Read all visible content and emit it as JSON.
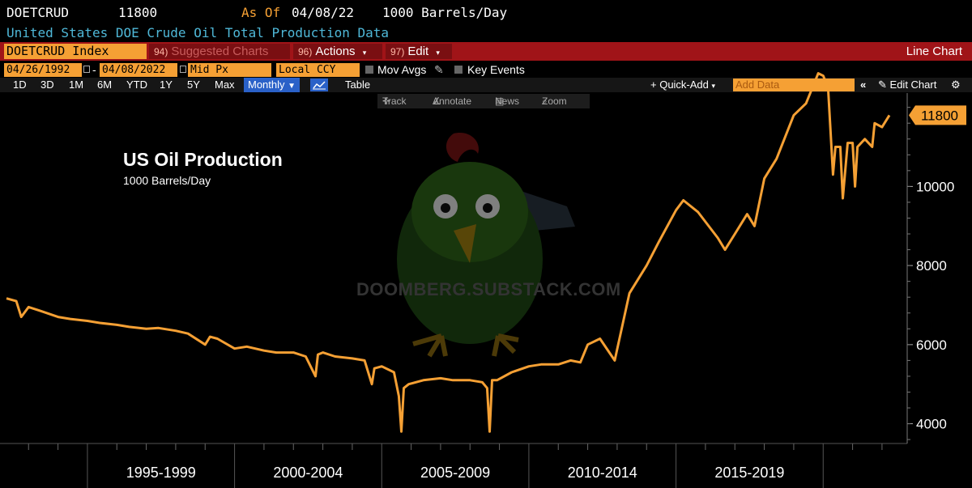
{
  "header": {
    "ticker": "DOETCRUD",
    "last_value": "11800",
    "as_of_label": "As Of",
    "as_of_date": "04/08/22",
    "units": "1000 Barrels/Day",
    "description": "United States DOE Crude Oil Total Production Data"
  },
  "toolbar": {
    "ticker_input": "DOETCRUD Index",
    "suggested_num": "94)",
    "suggested_label": "Suggested Charts",
    "actions_num": "96)",
    "actions_label": "Actions",
    "edit_num": "97)",
    "edit_label": "Edit",
    "chart_type": "Line Chart"
  },
  "settings": {
    "start_date": "04/26/1992",
    "end_date": "04/08/2022",
    "price_field": "Mid Px",
    "currency": "Local CCY",
    "mov_avgs": "Mov Avgs",
    "key_events": "Key Events"
  },
  "range_bar": {
    "ranges": [
      "1D",
      "3D",
      "1M",
      "6M",
      "YTD",
      "1Y",
      "5Y",
      "Max"
    ],
    "period": "Monthly",
    "table": "Table",
    "quick_add": "+ Quick-Add",
    "add_data_placeholder": "Add Data",
    "edit_chart": "Edit Chart"
  },
  "chart_tools": [
    "Track",
    "Annotate",
    "News",
    "Zoom"
  ],
  "watermark": "DOOMBERG.SUBSTACK.COM",
  "colors": {
    "line": "#f5a034",
    "background": "#000000",
    "toolbar": "#a01418"
  },
  "chart_data": {
    "type": "line",
    "title": "US Oil Production",
    "subtitle": "1000 Barrels/Day",
    "xlabel": "",
    "ylabel": "",
    "x_range": [
      "1992-04",
      "2022-04"
    ],
    "ylim": [
      3500,
      12300
    ],
    "y_ticks": [
      4000,
      6000,
      8000,
      10000
    ],
    "x_tick_labels": [
      "1995-1999",
      "2000-2004",
      "2005-2009",
      "2010-2014",
      "2015-2019"
    ],
    "last_value_label": "11800",
    "series": [
      {
        "x": [
          "1992-04",
          "1992-08",
          "1992-10",
          "1993-01",
          "1993-06",
          "1994-01",
          "1994-06",
          "1995-01",
          "1995-06",
          "1996-01",
          "1996-06",
          "1997-01",
          "1997-06",
          "1998-01",
          "1998-06",
          "1999-01",
          "1999-03",
          "1999-06",
          "2000-01",
          "2000-06",
          "2001-01",
          "2001-06",
          "2002-01",
          "2002-06",
          "2002-10",
          "2002-11",
          "2003-01",
          "2003-06",
          "2004-01",
          "2004-06",
          "2004-09",
          "2004-10",
          "2005-01",
          "2005-06",
          "2005-08",
          "2005-09",
          "2005-10",
          "2005-12",
          "2006-06",
          "2007-01",
          "2007-06",
          "2008-01",
          "2008-06",
          "2008-08",
          "2008-09",
          "2008-10",
          "2008-12",
          "2009-06",
          "2010-01",
          "2010-06",
          "2011-01",
          "2011-06",
          "2011-10",
          "2012-01",
          "2012-06",
          "2012-12",
          "2013-06",
          "2014-01",
          "2014-06",
          "2015-01",
          "2015-04",
          "2015-10",
          "2016-06",
          "2016-09",
          "2017-01",
          "2017-06",
          "2017-09",
          "2018-01",
          "2018-06",
          "2019-01",
          "2019-06",
          "2019-11",
          "2020-01",
          "2020-03",
          "2020-05",
          "2020-06",
          "2020-08",
          "2020-09",
          "2020-11",
          "2021-01",
          "2021-02",
          "2021-03",
          "2021-06",
          "2021-09",
          "2021-10",
          "2022-01",
          "2022-04"
        ],
        "values": [
          7170,
          7100,
          6700,
          6950,
          6850,
          6700,
          6650,
          6600,
          6550,
          6500,
          6450,
          6400,
          6420,
          6350,
          6280,
          6000,
          6200,
          6150,
          5900,
          5950,
          5850,
          5800,
          5800,
          5700,
          5200,
          5750,
          5800,
          5700,
          5650,
          5600,
          5000,
          5400,
          5450,
          5300,
          4700,
          3800,
          4900,
          5000,
          5100,
          5150,
          5100,
          5100,
          5050,
          4900,
          3800,
          5100,
          5100,
          5300,
          5450,
          5500,
          5500,
          5600,
          5550,
          6000,
          6150,
          5600,
          7300,
          8000,
          8600,
          9400,
          9650,
          9350,
          8700,
          8400,
          8800,
          9300,
          9000,
          10200,
          10700,
          11800,
          12100,
          12860,
          12800,
          12500,
          10300,
          11000,
          11000,
          9700,
          11100,
          11100,
          10000,
          11000,
          11200,
          11000,
          11600,
          11500,
          11800
        ]
      }
    ]
  }
}
